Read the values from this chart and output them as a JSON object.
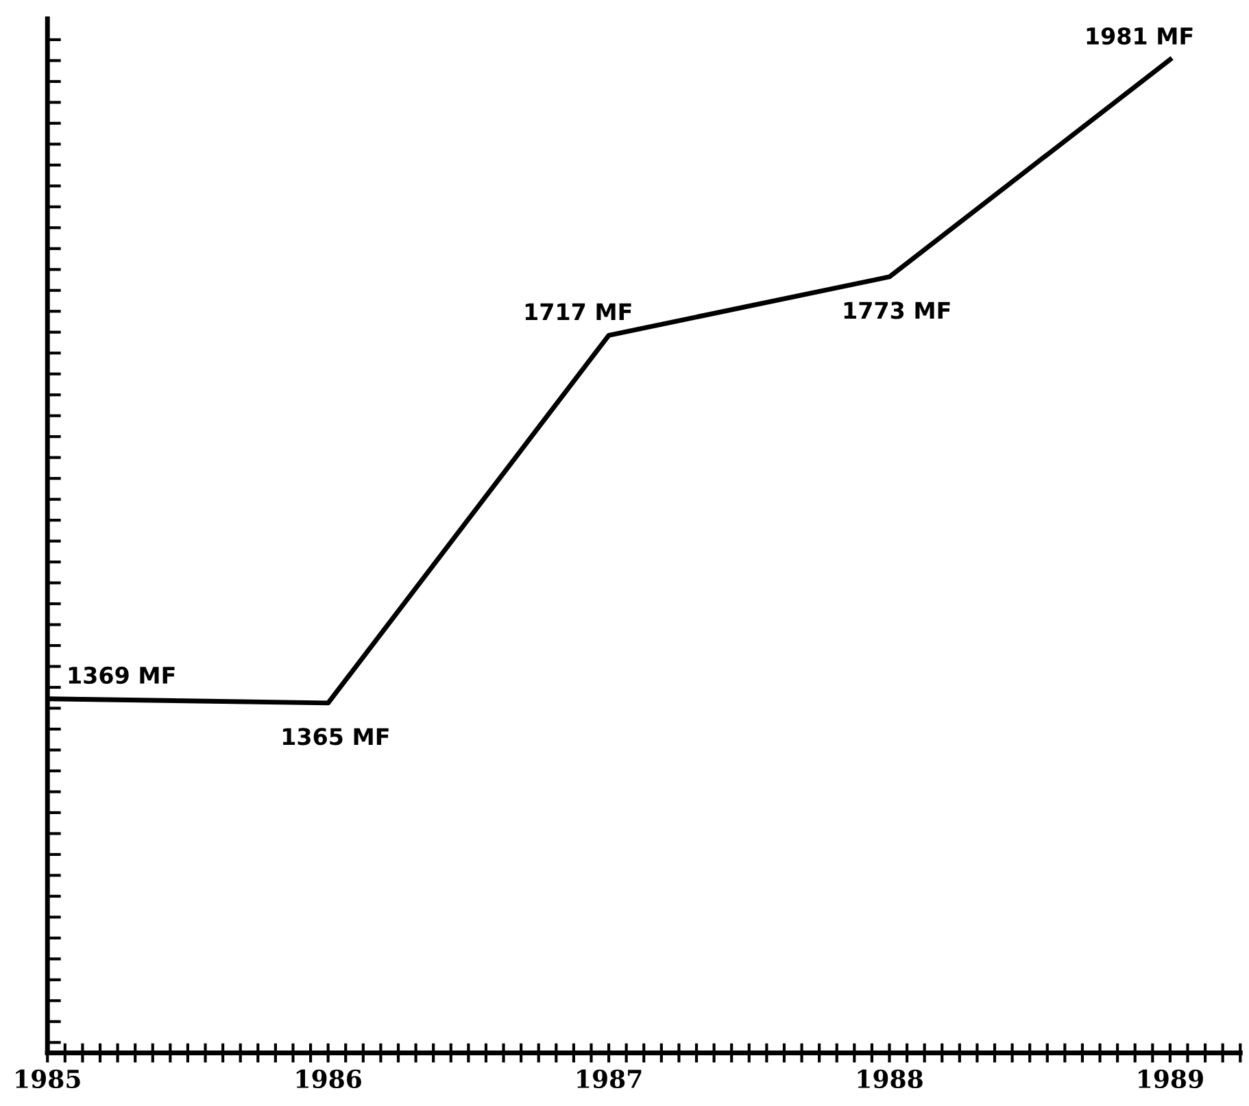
{
  "chart_data": {
    "type": "line",
    "x": [
      1985,
      1986,
      1987,
      1988,
      1989
    ],
    "series": [
      {
        "color": "#000000",
        "values": [
          1369,
          1365,
          1717,
          1773,
          1981
        ],
        "value_labels": [
          "1369 MF",
          "1365 MF",
          "1717 MF",
          "1773 MF",
          "1981 MF"
        ]
      }
    ],
    "xlim": [
      1985,
      1989.25
    ],
    "ylim": [
      1030,
      2020
    ],
    "xticks": [
      1985,
      {
        "value": 1985.0625,
        "label": null
      },
      {
        "value": 1985.125,
        "label": null
      },
      {
        "value": 1985.1875,
        "label": null
      },
      {
        "value": 1985.25,
        "label": null
      },
      {
        "value": 1985.3125,
        "label": null
      },
      {
        "value": 1985.375,
        "label": null
      },
      {
        "value": 1985.4375,
        "label": null
      },
      {
        "value": 1985.5,
        "label": null
      },
      {
        "value": 1985.5625,
        "label": null
      },
      {
        "value": 1985.625,
        "label": null
      },
      {
        "value": 1985.6875,
        "label": null
      },
      {
        "value": 1985.75,
        "label": null
      },
      {
        "value": 1985.8125,
        "label": null
      },
      {
        "value": 1985.875,
        "label": null
      },
      {
        "value": 1985.9375,
        "label": null
      },
      1986,
      {
        "value": 1986.0625,
        "label": null
      },
      {
        "value": 1986.125,
        "label": null
      },
      {
        "value": 1986.1875,
        "label": null
      },
      {
        "value": 1986.25,
        "label": null
      },
      {
        "value": 1986.3125,
        "label": null
      },
      {
        "value": 1986.375,
        "label": null
      },
      {
        "value": 1986.4375,
        "label": null
      },
      {
        "value": 1986.5,
        "label": null
      },
      {
        "value": 1986.5625,
        "label": null
      },
      {
        "value": 1986.625,
        "label": null
      },
      {
        "value": 1986.6875,
        "label": null
      },
      {
        "value": 1986.75,
        "label": null
      },
      {
        "value": 1986.8125,
        "label": null
      },
      {
        "value": 1986.875,
        "label": null
      },
      {
        "value": 1986.9375,
        "label": null
      },
      1987,
      {
        "value": 1987.0625,
        "label": null
      },
      {
        "value": 1987.125,
        "label": null
      },
      {
        "value": 1987.1875,
        "label": null
      },
      {
        "value": 1987.25,
        "label": null
      },
      {
        "value": 1987.3125,
        "label": null
      },
      {
        "value": 1987.375,
        "label": null
      },
      {
        "value": 1987.4375,
        "label": null
      },
      {
        "value": 1987.5,
        "label": null
      },
      {
        "value": 1987.5625,
        "label": null
      },
      {
        "value": 1987.625,
        "label": null
      },
      {
        "value": 1987.6875,
        "label": null
      },
      {
        "value": 1987.75,
        "label": null
      },
      {
        "value": 1987.8125,
        "label": null
      },
      {
        "value": 1987.875,
        "label": null
      },
      {
        "value": 1987.9375,
        "label": null
      },
      1988,
      {
        "value": 1988.0625,
        "label": null
      },
      {
        "value": 1988.125,
        "label": null
      },
      {
        "value": 1988.1875,
        "label": null
      },
      {
        "value": 1988.25,
        "label": null
      },
      {
        "value": 1988.3125,
        "label": null
      },
      {
        "value": 1988.375,
        "label": null
      },
      {
        "value": 1988.4375,
        "label": null
      },
      {
        "value": 1988.5,
        "label": null
      },
      {
        "value": 1988.5625,
        "label": null
      },
      {
        "value": 1988.625,
        "label": null
      },
      {
        "value": 1988.6875,
        "label": null
      },
      {
        "value": 1988.75,
        "label": null
      },
      {
        "value": 1988.8125,
        "label": null
      },
      {
        "value": 1988.875,
        "label": null
      },
      {
        "value": 1988.9375,
        "label": null
      },
      1989,
      {
        "value": 1989.0625,
        "label": null
      },
      {
        "value": 1989.125,
        "label": null
      },
      {
        "value": 1989.1875,
        "label": null
      },
      {
        "value": 1989.25,
        "label": null
      }
    ],
    "yticks": [
      {
        "value": 1040,
        "label": null
      },
      {
        "value": 1060,
        "label": null
      },
      {
        "value": 1080,
        "label": null
      },
      {
        "value": 1100,
        "label": null
      },
      {
        "value": 1120,
        "label": null
      },
      {
        "value": 1140,
        "label": null
      },
      {
        "value": 1160,
        "label": null
      },
      {
        "value": 1180,
        "label": null
      },
      {
        "value": 1200,
        "label": null
      },
      {
        "value": 1220,
        "label": null
      },
      {
        "value": 1240,
        "label": null
      },
      {
        "value": 1260,
        "label": null
      },
      {
        "value": 1280,
        "label": null
      },
      {
        "value": 1300,
        "label": null
      },
      {
        "value": 1320,
        "label": null
      },
      {
        "value": 1340,
        "label": null
      },
      {
        "value": 1360,
        "label": null
      },
      {
        "value": 1380,
        "label": null
      },
      {
        "value": 1400,
        "label": null
      },
      {
        "value": 1420,
        "label": null
      },
      {
        "value": 1440,
        "label": null
      },
      {
        "value": 1460,
        "label": null
      },
      {
        "value": 1480,
        "label": null
      },
      {
        "value": 1500,
        "label": null
      },
      {
        "value": 1520,
        "label": null
      },
      {
        "value": 1540,
        "label": null
      },
      {
        "value": 1560,
        "label": null
      },
      {
        "value": 1580,
        "label": null
      },
      {
        "value": 1600,
        "label": null
      },
      {
        "value": 1620,
        "label": null
      },
      {
        "value": 1640,
        "label": null
      },
      {
        "value": 1660,
        "label": null
      },
      {
        "value": 1680,
        "label": null
      },
      {
        "value": 1700,
        "label": null
      },
      {
        "value": 1720,
        "label": null
      },
      {
        "value": 1740,
        "label": null
      },
      {
        "value": 1760,
        "label": null
      },
      {
        "value": 1780,
        "label": null
      },
      {
        "value": 1800,
        "label": null
      },
      {
        "value": 1820,
        "label": null
      },
      {
        "value": 1840,
        "label": null
      },
      {
        "value": 1860,
        "label": null
      },
      {
        "value": 1880,
        "label": null
      },
      {
        "value": 1900,
        "label": null
      },
      {
        "value": 1920,
        "label": null
      },
      {
        "value": 1940,
        "label": null
      },
      {
        "value": 1960,
        "label": null
      },
      {
        "value": 1980,
        "label": null
      },
      {
        "value": 2000,
        "label": null
      }
    ],
    "tick_labels": "x",
    "grid": false,
    "legend": false,
    "marker": "none",
    "line_style": "solid"
  }
}
